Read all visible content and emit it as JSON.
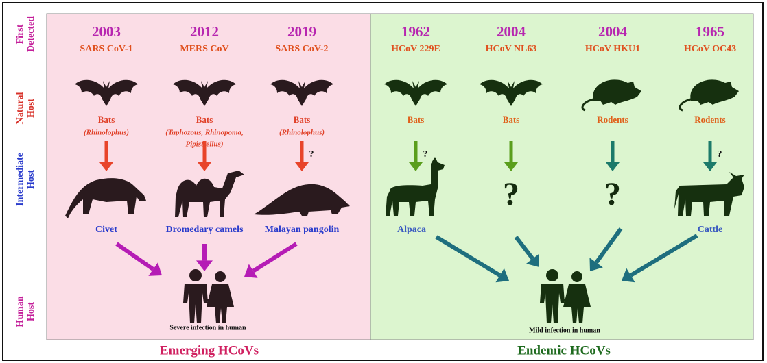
{
  "row_labels": [
    {
      "lines": [
        "First",
        "Detected"
      ]
    },
    {
      "lines": [
        "Natural",
        "Host"
      ]
    },
    {
      "lines": [
        "Intermediate",
        "Host"
      ]
    },
    {
      "lines": [
        "Human",
        "Host"
      ]
    }
  ],
  "groups": [
    {
      "name": "Emerging HCoVs",
      "outcome": "Severe infection in human",
      "viruses": [
        {
          "year": "2003",
          "name": "SARS CoV-1",
          "natural_host": "Bats",
          "natural_host_detail": [
            "(Rhinolophus)"
          ],
          "intermediate_host": "Civet"
        },
        {
          "year": "2012",
          "name": "MERS CoV",
          "natural_host": "Bats",
          "natural_host_detail": [
            "(Taphozous, Rhinopoma,",
            "Pipistrellus)"
          ],
          "intermediate_host": "Dromedary camels"
        },
        {
          "year": "2019",
          "name": "SARS CoV-2",
          "natural_host": "Bats",
          "natural_host_detail": [
            "(Rhinolophus)"
          ],
          "arrow_note": "?",
          "intermediate_host": "Malayan pangolin"
        }
      ]
    },
    {
      "name": "Endemic HCoVs",
      "outcome": "Mild infection in human",
      "viruses": [
        {
          "year": "1962",
          "name": "HCoV 229E",
          "natural_host": "Bats",
          "arrow_note": "?",
          "intermediate_host": "Alpaca"
        },
        {
          "year": "2004",
          "name": "HCoV NL63",
          "natural_host": "Bats",
          "intermediate_unknown": "?"
        },
        {
          "year": "2004",
          "name": "HCoV HKU1",
          "natural_host": "Rodents",
          "intermediate_unknown": "?"
        },
        {
          "year": "1965",
          "name": "HCoV OC43",
          "natural_host": "Rodents",
          "arrow_note": "?",
          "intermediate_host": "Cattle"
        }
      ]
    }
  ]
}
